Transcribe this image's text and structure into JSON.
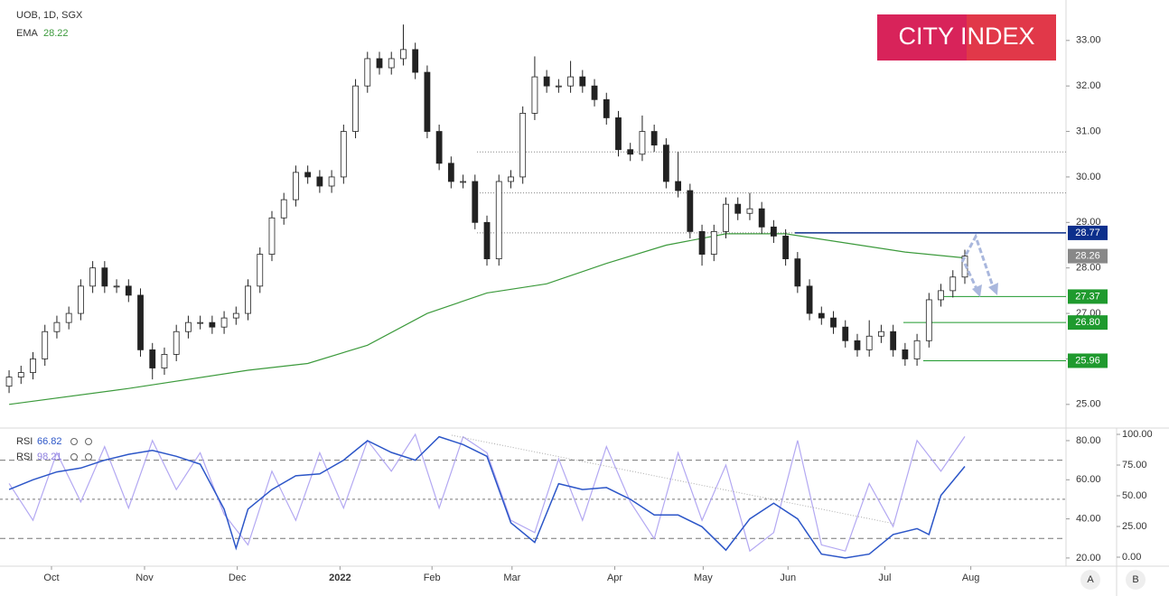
{
  "logo": "CITY INDEX",
  "axis_buttons": [
    "A",
    "B"
  ],
  "chart_data": [
    {
      "type": "candlestick",
      "title": "UOB, 1D, SGX",
      "candles": [
        [
          25.4,
          25.75,
          25.25,
          25.6
        ],
        [
          25.6,
          25.85,
          25.45,
          25.7
        ],
        [
          25.7,
          26.15,
          25.55,
          26.0
        ],
        [
          26.0,
          26.75,
          25.85,
          26.6
        ],
        [
          26.6,
          26.95,
          26.45,
          26.8
        ],
        [
          26.8,
          27.15,
          26.65,
          27.0
        ],
        [
          27.0,
          27.75,
          26.85,
          27.6
        ],
        [
          27.6,
          28.15,
          27.45,
          28.0
        ],
        [
          28.0,
          28.15,
          27.45,
          27.6
        ],
        [
          27.6,
          27.75,
          27.45,
          27.6
        ],
        [
          27.6,
          27.75,
          27.25,
          27.4
        ],
        [
          27.4,
          27.55,
          26.05,
          26.2
        ],
        [
          26.2,
          26.35,
          25.55,
          25.8
        ],
        [
          25.8,
          26.25,
          25.65,
          26.1
        ],
        [
          26.1,
          26.75,
          25.95,
          26.6
        ],
        [
          26.6,
          26.95,
          26.45,
          26.8
        ],
        [
          26.8,
          26.95,
          26.65,
          26.8
        ],
        [
          26.8,
          26.95,
          26.55,
          26.7
        ],
        [
          26.7,
          27.05,
          26.55,
          26.9
        ],
        [
          26.9,
          27.15,
          26.75,
          27.0
        ],
        [
          27.0,
          27.75,
          26.85,
          27.6
        ],
        [
          27.6,
          28.45,
          27.45,
          28.3
        ],
        [
          28.3,
          29.25,
          28.15,
          29.1
        ],
        [
          29.1,
          29.65,
          28.95,
          29.5
        ],
        [
          29.5,
          30.25,
          29.35,
          30.1
        ],
        [
          30.1,
          30.25,
          29.85,
          30.0
        ],
        [
          30.0,
          30.15,
          29.65,
          29.8
        ],
        [
          29.8,
          30.15,
          29.65,
          30.0
        ],
        [
          30.0,
          31.15,
          29.85,
          31.0
        ],
        [
          31.0,
          32.15,
          30.85,
          32.0
        ],
        [
          32.0,
          32.75,
          31.85,
          32.6
        ],
        [
          32.6,
          32.75,
          32.25,
          32.4
        ],
        [
          32.4,
          32.75,
          32.25,
          32.6
        ],
        [
          32.6,
          33.35,
          32.45,
          32.8
        ],
        [
          32.8,
          32.95,
          32.15,
          32.3
        ],
        [
          32.3,
          32.45,
          30.85,
          31.0
        ],
        [
          31.0,
          31.15,
          30.15,
          30.3
        ],
        [
          30.3,
          30.45,
          29.75,
          29.9
        ],
        [
          29.9,
          30.05,
          29.75,
          29.9
        ],
        [
          29.9,
          30.05,
          28.85,
          29.0
        ],
        [
          29.0,
          29.15,
          28.05,
          28.2
        ],
        [
          28.2,
          30.05,
          28.05,
          29.9
        ],
        [
          29.9,
          30.15,
          29.75,
          30.0
        ],
        [
          30.0,
          31.55,
          29.85,
          31.4
        ],
        [
          31.4,
          32.65,
          31.25,
          32.2
        ],
        [
          32.2,
          32.35,
          31.85,
          32.0
        ],
        [
          32.0,
          32.15,
          31.85,
          32.0
        ],
        [
          32.0,
          32.55,
          31.85,
          32.2
        ],
        [
          32.2,
          32.35,
          31.85,
          32.0
        ],
        [
          32.0,
          32.15,
          31.55,
          31.7
        ],
        [
          31.7,
          31.85,
          31.15,
          31.3
        ],
        [
          31.3,
          31.45,
          30.45,
          30.6
        ],
        [
          30.6,
          30.75,
          30.35,
          30.5
        ],
        [
          30.5,
          31.35,
          30.35,
          31.0
        ],
        [
          31.0,
          31.15,
          30.55,
          30.7
        ],
        [
          30.7,
          30.85,
          29.75,
          29.9
        ],
        [
          29.9,
          30.55,
          29.55,
          29.7
        ],
        [
          29.7,
          29.85,
          28.65,
          28.8
        ],
        [
          28.8,
          28.95,
          28.05,
          28.3
        ],
        [
          28.3,
          28.95,
          28.15,
          28.8
        ],
        [
          28.8,
          29.55,
          28.65,
          29.4
        ],
        [
          29.4,
          29.55,
          29.05,
          29.2
        ],
        [
          29.2,
          29.65,
          29.05,
          29.3
        ],
        [
          29.3,
          29.45,
          28.75,
          28.9
        ],
        [
          28.9,
          29.05,
          28.55,
          28.7
        ],
        [
          28.7,
          28.85,
          28.05,
          28.2
        ],
        [
          28.2,
          28.35,
          27.45,
          27.6
        ],
        [
          27.6,
          27.75,
          26.85,
          27.0
        ],
        [
          27.0,
          27.15,
          26.75,
          26.9
        ],
        [
          26.9,
          27.05,
          26.55,
          26.7
        ],
        [
          26.7,
          26.85,
          26.25,
          26.4
        ],
        [
          26.4,
          26.55,
          26.05,
          26.2
        ],
        [
          26.2,
          26.85,
          26.05,
          26.5
        ],
        [
          26.5,
          26.75,
          26.35,
          26.6
        ],
        [
          26.6,
          26.75,
          26.05,
          26.2
        ],
        [
          26.2,
          26.35,
          25.85,
          26.0
        ],
        [
          26.0,
          26.55,
          25.85,
          26.4
        ],
        [
          26.4,
          27.45,
          26.25,
          27.3
        ],
        [
          27.3,
          27.65,
          27.15,
          27.5
        ],
        [
          27.5,
          27.95,
          27.35,
          27.8
        ],
        [
          27.8,
          28.4,
          27.65,
          28.26
        ]
      ],
      "ema": {
        "name": "EMA",
        "color": "#3c9a3c",
        "x": [
          0,
          10,
          20,
          25,
          30,
          35,
          40,
          45,
          50,
          55,
          60,
          65,
          70,
          75,
          80
        ],
        "values": [
          25.0,
          25.35,
          25.75,
          25.9,
          26.3,
          27.0,
          27.45,
          27.65,
          28.1,
          28.5,
          28.75,
          28.75,
          28.55,
          28.35,
          28.22
        ]
      },
      "levels": [
        {
          "value": 28.77,
          "label": "28.77",
          "color": "#0c2f8c"
        },
        {
          "value": 27.37,
          "label": "27.37",
          "color": "#1f9a2e"
        },
        {
          "value": 26.8,
          "label": "26.80",
          "color": "#1f9a2e"
        },
        {
          "value": 25.96,
          "label": "25.96",
          "color": "#1f9a2e"
        }
      ],
      "dotted_levels": [
        30.55,
        29.65,
        28.77
      ],
      "ylim": [
        24.56,
        33.79
      ],
      "yticks": [
        {
          "value": 25,
          "label": "25.00"
        },
        {
          "value": 26,
          "label": "26.00"
        },
        {
          "value": 27,
          "label": "27.00"
        },
        {
          "value": 28,
          "label": "28.00"
        },
        {
          "value": 29,
          "label": "29.00"
        },
        {
          "value": 30,
          "label": "30.00"
        },
        {
          "value": 31,
          "label": "31.00"
        },
        {
          "value": 32,
          "label": "32.00"
        },
        {
          "value": 33,
          "label": "33.00"
        }
      ],
      "xlim": [
        -0.76,
        88.47
      ],
      "xticks": [
        {
          "value": 3.55,
          "label": "Oct"
        },
        {
          "value": 11.34,
          "label": "Nov"
        },
        {
          "value": 19.1,
          "label": "Dec"
        },
        {
          "value": 27.7,
          "label": "2022"
        },
        {
          "value": 35.4,
          "label": "Feb"
        },
        {
          "value": 42.1,
          "label": "Mar"
        },
        {
          "value": 50.7,
          "label": "Apr"
        },
        {
          "value": 58.1,
          "label": "May"
        },
        {
          "value": 65.2,
          "label": "Jun"
        },
        {
          "value": 73.3,
          "label": "Jul"
        },
        {
          "value": 80.5,
          "label": "Aug"
        }
      ]
    },
    {
      "type": "line",
      "series": [
        {
          "name": "RSI",
          "color": "#2c56c8",
          "x": [
            0,
            2,
            4,
            6,
            8,
            10,
            12,
            14,
            16,
            18,
            19,
            20,
            22,
            24,
            26,
            28,
            30,
            32,
            34,
            36,
            38,
            40,
            42,
            44,
            46,
            48,
            50,
            52,
            54,
            56,
            58,
            60,
            62,
            64,
            66,
            68,
            70,
            72,
            74,
            76,
            77,
            78,
            80
          ],
          "values": [
            55,
            60,
            64,
            66,
            70,
            73,
            75,
            72,
            68,
            45,
            25,
            45,
            55,
            62,
            63,
            70,
            80,
            74,
            70,
            82,
            78,
            72,
            38,
            28,
            58,
            55,
            56,
            50,
            42,
            42,
            36,
            24,
            40,
            48,
            40,
            22,
            20,
            22,
            32,
            35,
            32,
            52,
            66.82
          ]
        },
        {
          "name": "RSI",
          "color": "#b3a8f2",
          "axis": "y2",
          "x": [
            0,
            2,
            4,
            6,
            8,
            10,
            12,
            14,
            16,
            18,
            20,
            22,
            24,
            26,
            28,
            30,
            32,
            34,
            36,
            38,
            40,
            42,
            44,
            46,
            48,
            50,
            52,
            54,
            56,
            58,
            60,
            62,
            64,
            66,
            68,
            70,
            72,
            74,
            76,
            78,
            80
          ],
          "values": [
            60,
            30,
            85,
            45,
            90,
            40,
            95,
            55,
            85,
            35,
            10,
            70,
            30,
            85,
            40,
            95,
            70,
            100,
            40,
            98,
            85,
            30,
            20,
            80,
            30,
            90,
            45,
            15,
            85,
            30,
            75,
            5,
            20,
            95,
            10,
            5,
            60,
            25,
            95,
            70,
            98.21
          ]
        }
      ],
      "reference_levels": [
        70,
        50,
        30
      ],
      "xlim": [
        -0.76,
        88.47
      ],
      "ylim": [
        15.8,
        84.6
      ],
      "yticks": [
        {
          "value": 20,
          "label": "20.00"
        },
        {
          "value": 40,
          "label": "40.00"
        },
        {
          "value": 60,
          "label": "60.00"
        },
        {
          "value": 80,
          "label": "80.00"
        }
      ],
      "y2lim": [
        -7.35,
        102.2
      ],
      "y2ticks": [
        {
          "value": 0,
          "label": "0.00"
        },
        {
          "value": 25,
          "label": "25.00"
        },
        {
          "value": 50,
          "label": "50.00"
        },
        {
          "value": 75,
          "label": "75.00"
        },
        {
          "value": 100,
          "label": "100.00"
        }
      ]
    }
  ]
}
